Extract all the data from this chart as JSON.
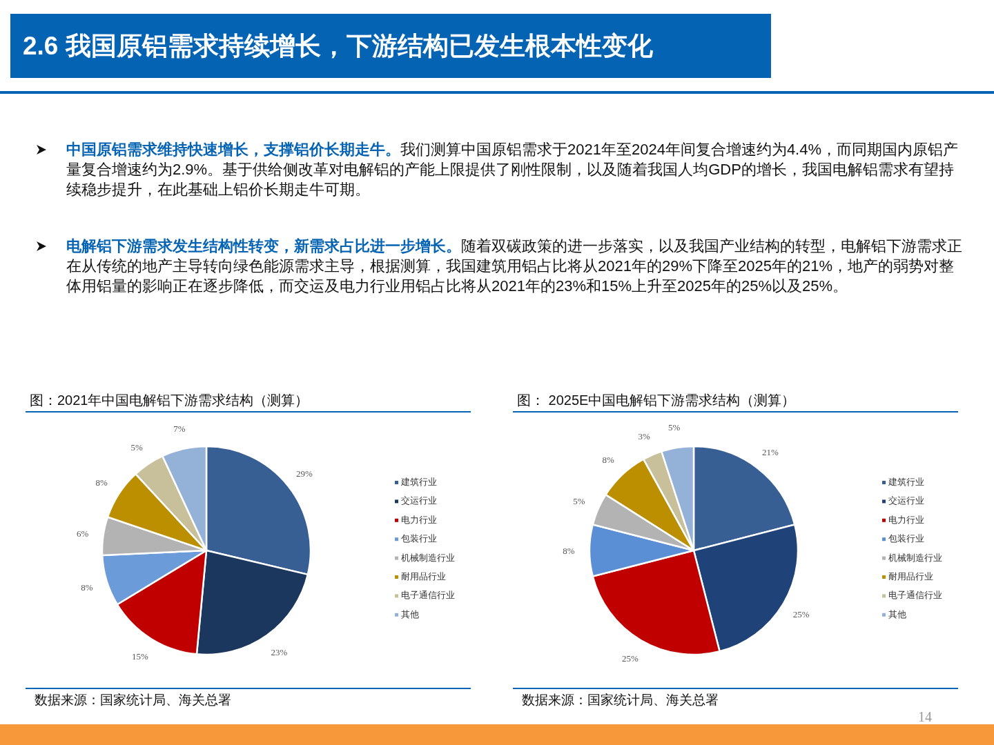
{
  "chart_data": [
    {
      "type": "other",
      "title": "2.6 我国原铝需求持续增长，下游结构已发生根本性变化",
      "annotations": [
        "**中国原铝需求维持快速增长，支撑铝价长期走牛。**我们测算中国原铝需求于2021年至2024年间复合增速约为4.4%，而同期国内原铝产量复合增速约为2.9%。基于供给侧改革对电解铝的产能上限提供了刚性限制，以及随着我国人均GDP的增长，我国电解铝需求有望持续稳步提升，在此基础上铝价长期走牛可期。",
        "**电解铝下游需求发生结构性转变，新需求占比进一步增长。**随着双碳政策的进一步落实，以及我国产业结构的转型，电解铝下游需求正在从传统的地产主导转向绿色能源需求主导，根据测算，我国建筑用铝占比将从2021年的29%下降至2025年的21%，地产的弱势对整体用铝量的影响正在逐步降低，而交运及电力行业用铝占比将从2021年的23%和15%上升至2025年的25%以及25%。",
        "14"
      ]
    },
    {
      "type": "pie",
      "title": "图：2021年中国电解铝下游需求结构（测算）",
      "legend": "right",
      "categories": [
        "建筑行业",
        "交运行业",
        "电力行业",
        "包装行业",
        "机械制造行业",
        "耐用品行业",
        "电子通信行业",
        "其他"
      ],
      "values": [
        29,
        23,
        15,
        8,
        6,
        8,
        5,
        7
      ],
      "value_labels": [
        "29%",
        "23%",
        "15%",
        "8%",
        "6%",
        "8%",
        "5%",
        "7%"
      ],
      "colors": [
        "#375f93",
        "#1b375e",
        "#c00000",
        "#6b9bd8",
        "#b3b3b3",
        "#bc8f00",
        "#c8c09b",
        "#94b2d8"
      ],
      "annotations": [
        "数据来源：国家统计局、海关总署"
      ]
    },
    {
      "type": "pie",
      "title": "图： 2025E中国电解铝下游需求结构（测算）",
      "legend": "right",
      "categories": [
        "建筑行业",
        "交运行业",
        "电力行业",
        "包装行业",
        "机械制造行业",
        "耐用品行业",
        "电子通信行业",
        "其他"
      ],
      "values": [
        21,
        25,
        25,
        8,
        5,
        8,
        3,
        5
      ],
      "value_labels": [
        "21%",
        "25%",
        "25%",
        "8%",
        "5%",
        "8%",
        "3%",
        "5%"
      ],
      "colors": [
        "#375f93",
        "#1f4279",
        "#c00000",
        "#5a8fd6",
        "#b3b3b3",
        "#bc8f00",
        "#c8c09b",
        "#94b2d8"
      ],
      "annotations": [
        "数据来源：国家统计局、海关总署"
      ]
    }
  ]
}
